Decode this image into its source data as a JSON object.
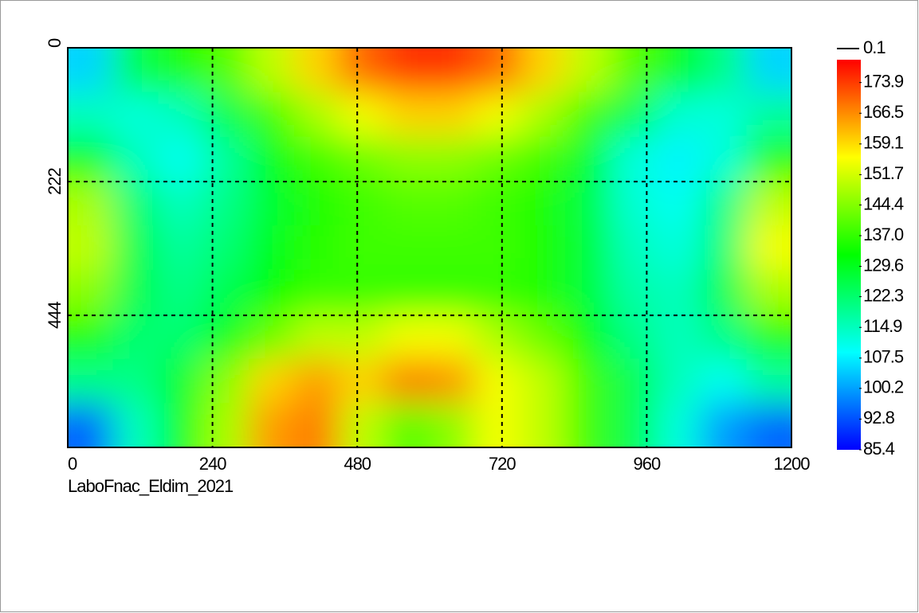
{
  "chart_data": {
    "type": "heatmap",
    "annotation": "LaboFnac_Eldim_2021",
    "xlim": [
      0,
      1200
    ],
    "xticks": [
      0,
      240,
      480,
      720,
      960,
      1200
    ],
    "ylim": [
      0,
      663
    ],
    "yticks": [
      0,
      222,
      444
    ],
    "grid": true,
    "colormap": [
      "#0000ff",
      "#00ffff",
      "#00ff00",
      "#ffff00",
      "#ff0000"
    ],
    "clim": [
      85.4,
      179.4
    ],
    "colorbar_top_label": 0.1,
    "colorbar_ticks": [
      173.9,
      166.5,
      159.1,
      151.7,
      144.4,
      {
        "value": 137,
        "label": "137.0"
      },
      129.6,
      122.3,
      114.9,
      107.5,
      100.2,
      92.8,
      85.4
    ],
    "z": [
      [
        105,
        125,
        135,
        140,
        150,
        160,
        170,
        175,
        175,
        170,
        160,
        150,
        140,
        130,
        120,
        105
      ],
      [
        115,
        112,
        115,
        125,
        138,
        148,
        155,
        160,
        160,
        155,
        148,
        138,
        125,
        113,
        112,
        118
      ],
      [
        130,
        115,
        110,
        118,
        130,
        138,
        142,
        145,
        145,
        142,
        138,
        128,
        112,
        108,
        112,
        135
      ],
      [
        148,
        122,
        115,
        120,
        128,
        135,
        138,
        140,
        140,
        138,
        135,
        126,
        113,
        110,
        120,
        150
      ],
      [
        150,
        125,
        118,
        122,
        130,
        136,
        138,
        138,
        138,
        138,
        135,
        127,
        115,
        112,
        122,
        155
      ],
      [
        145,
        125,
        120,
        125,
        132,
        137,
        137,
        137,
        137,
        137,
        135,
        127,
        117,
        115,
        125,
        148
      ],
      [
        135,
        122,
        122,
        130,
        142,
        150,
        150,
        155,
        155,
        148,
        142,
        132,
        120,
        115,
        120,
        135
      ],
      [
        120,
        120,
        128,
        145,
        160,
        165,
        160,
        168,
        166,
        155,
        150,
        138,
        125,
        115,
        110,
        118
      ],
      [
        95,
        115,
        130,
        148,
        165,
        168,
        150,
        140,
        145,
        155,
        150,
        138,
        125,
        112,
        100,
        95
      ]
    ]
  }
}
